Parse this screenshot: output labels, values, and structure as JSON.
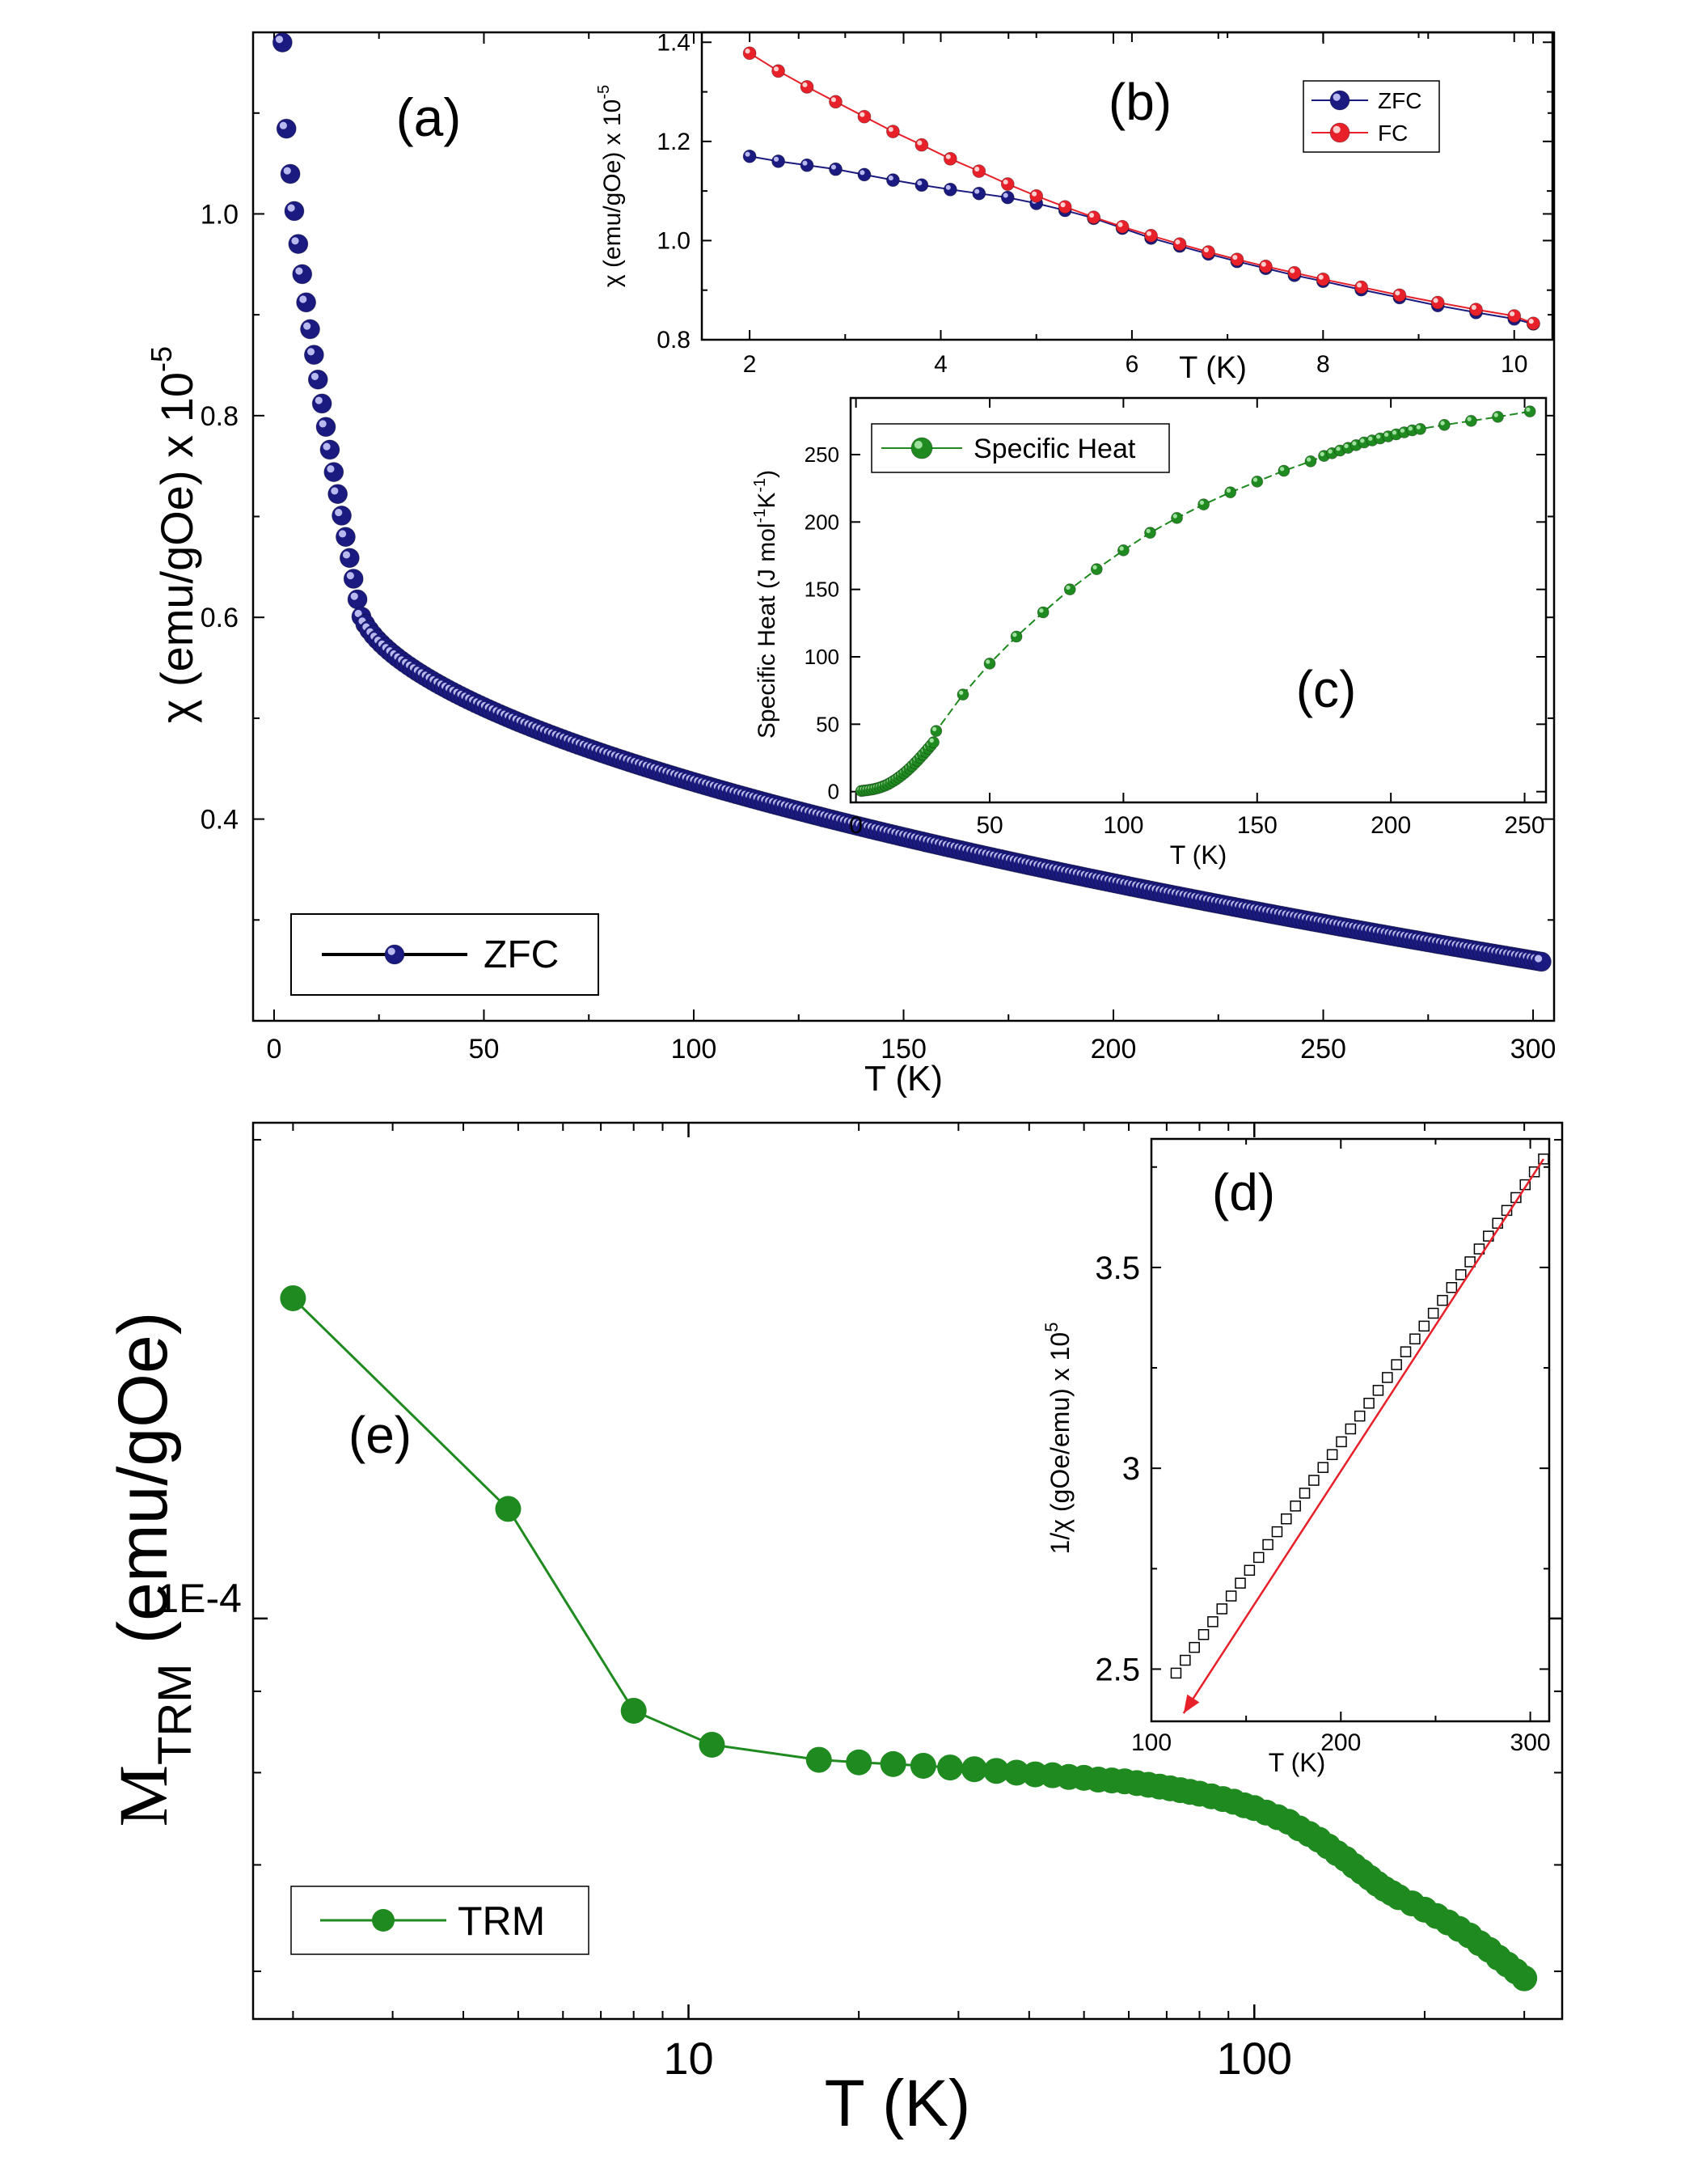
{
  "chart_data": [
    {
      "id": "a",
      "type": "scatter",
      "panel_label": "(a)",
      "xlabel": "T (K)",
      "ylabel": "χ (emu/gOe) x 10",
      "ylabel_exp": "-5",
      "xlim": [
        -5,
        305
      ],
      "ylim": [
        0.2,
        1.18
      ],
      "x_ticks": [
        "0",
        "50",
        "100",
        "150",
        "200",
        "250",
        "300"
      ],
      "y_ticks": [
        "0.4",
        "0.6",
        "0.8",
        "1.0"
      ],
      "legend": [
        "ZFC"
      ],
      "colors": {
        "ZFC": "#1a1a80"
      },
      "series": [
        {
          "name": "ZFC",
          "curve": "zfc_susceptibility",
          "x_range": [
            2.0,
            302.0
          ],
          "points": 320,
          "y_at_2K": 1.17,
          "y_at_20K": 0.615,
          "y_at_300K": 0.26
        }
      ]
    },
    {
      "id": "b",
      "type": "line",
      "panel_label": "(b)",
      "xlabel": "T (K)",
      "ylabel": "χ (emu/gOe) x 10",
      "ylabel_exp": "-5",
      "xlim": [
        1.5,
        10.4
      ],
      "ylim": [
        0.8,
        1.42
      ],
      "x_ticks": [
        "2",
        "4",
        "6",
        "8",
        "10"
      ],
      "y_ticks": [
        "0.8",
        "1.0",
        "1.2",
        "1.4"
      ],
      "legend": [
        "ZFC",
        "FC"
      ],
      "colors": {
        "ZFC": "#1a1a80",
        "FC": "#e8202a"
      },
      "series": [
        {
          "name": "ZFC",
          "x": [
            2.0,
            2.3,
            2.6,
            2.9,
            3.2,
            3.5,
            3.8,
            4.1,
            4.4,
            4.7,
            5.0,
            5.3,
            5.6,
            5.9,
            6.2,
            6.5,
            6.8,
            7.1,
            7.4,
            7.7,
            8.0,
            8.4,
            8.8,
            9.2,
            9.6,
            10.0,
            10.2
          ],
          "y": [
            1.17,
            1.16,
            1.152,
            1.144,
            1.133,
            1.122,
            1.112,
            1.103,
            1.095,
            1.087,
            1.075,
            1.061,
            1.045,
            1.025,
            1.005,
            0.989,
            0.973,
            0.958,
            0.944,
            0.93,
            0.918,
            0.901,
            0.885,
            0.869,
            0.855,
            0.842,
            0.832
          ]
        },
        {
          "name": "FC",
          "x": [
            2.0,
            2.3,
            2.6,
            2.9,
            3.2,
            3.5,
            3.8,
            4.1,
            4.4,
            4.7,
            5.0,
            5.3,
            5.6,
            5.9,
            6.2,
            6.5,
            6.8,
            7.1,
            7.4,
            7.7,
            8.0,
            8.4,
            8.8,
            9.2,
            9.6,
            10.0,
            10.2
          ],
          "y": [
            1.378,
            1.342,
            1.31,
            1.28,
            1.25,
            1.22,
            1.193,
            1.165,
            1.14,
            1.114,
            1.09,
            1.068,
            1.047,
            1.028,
            1.01,
            0.993,
            0.977,
            0.962,
            0.948,
            0.935,
            0.922,
            0.906,
            0.89,
            0.875,
            0.861,
            0.848,
            0.833
          ]
        }
      ]
    },
    {
      "id": "c",
      "type": "line",
      "panel_label": "(c)",
      "xlabel": "T (K)",
      "ylabel": "Specific Heat (J mol",
      "ylabel_exp1": "-1",
      "ylabel_mid": "K",
      "ylabel_exp2": "-1",
      "ylabel_end": ")",
      "xlim": [
        -2,
        258
      ],
      "ylim": [
        -8,
        292
      ],
      "x_ticks": [
        "0",
        "50",
        "100",
        "150",
        "200",
        "250"
      ],
      "y_ticks": [
        "0",
        "50",
        "100",
        "150",
        "200",
        "250"
      ],
      "legend": [
        "Specific Heat"
      ],
      "colors": {
        "Specific Heat": "#1f8a1f"
      },
      "series": [
        {
          "name": "Specific Heat",
          "x": [
            2,
            3,
            4,
            5,
            6,
            7,
            8,
            9,
            10,
            11,
            12,
            13,
            14,
            15,
            16,
            17,
            18,
            19,
            20,
            21,
            22,
            23,
            24,
            25,
            26,
            27,
            28,
            29,
            30,
            40,
            50,
            60,
            70,
            80,
            90,
            100,
            110,
            120,
            130,
            140,
            150,
            160,
            170,
            175,
            178,
            181,
            184,
            187,
            190,
            193,
            196,
            199,
            202,
            205,
            208,
            211,
            220,
            230,
            240,
            252
          ],
          "y": [
            0.5,
            0.8,
            1.0,
            1.3,
            1.6,
            2.0,
            2.5,
            3.1,
            3.8,
            4.6,
            5.5,
            6.6,
            7.8,
            9.1,
            10.5,
            12.0,
            13.6,
            15.3,
            17.1,
            19.0,
            21.0,
            23.0,
            25.2,
            27.4,
            29.6,
            31.9,
            34.2,
            36.6,
            45.0,
            72.0,
            95.0,
            115.0,
            133.0,
            150.0,
            165.0,
            179.0,
            192.0,
            203.0,
            213.0,
            222.0,
            230.0,
            238.0,
            245.0,
            249.0,
            251.0,
            253.0,
            255.0,
            257.0,
            259.0,
            260.5,
            262.0,
            263.5,
            265.0,
            266.5,
            268.0,
            269.0,
            272.0,
            275.0,
            278.0,
            282.0
          ]
        }
      ]
    },
    {
      "id": "d",
      "type": "scatter",
      "panel_label": "(d)",
      "xlabel": "T (K)",
      "ylabel": "1/χ (gOe/emu) x 10",
      "ylabel_exp": "5",
      "xlim": [
        100,
        310
      ],
      "ylim": [
        2.37,
        3.82
      ],
      "x_ticks": [
        "100",
        "200",
        "300"
      ],
      "y_ticks": [
        "2.5",
        "3",
        "3.5"
      ],
      "legend": [],
      "colors": {
        "data": "#000000",
        "fit": "#e8202a"
      },
      "series": [
        {
          "name": "1/χ",
          "curve": "linear",
          "x_range": [
            113.0,
            307.0
          ],
          "points": 41,
          "y_start": 2.49,
          "y_end": 3.77
        },
        {
          "name": "linear fit",
          "x": [
            307.0,
            117.0
          ],
          "y": [
            3.77,
            2.39
          ]
        }
      ]
    },
    {
      "id": "e",
      "type": "line",
      "panel_label": "(e)",
      "xlabel": "T (K)",
      "ylabel": "M",
      "ylabel_sub": "TRM",
      "ylabel_rest": " (emu/gOe)",
      "xscale": "log",
      "yscale": "log",
      "xlim": [
        1.7,
        350
      ],
      "ylim": [
        5.6e-05,
        0.000205
      ],
      "x_ticks": [
        "10",
        "100"
      ],
      "y_ticks": [
        "1E-4"
      ],
      "legend": [
        "TRM"
      ],
      "colors": {
        "TRM": "#1f8a1f"
      },
      "series": [
        {
          "name": "TRM",
          "x": [
            2,
            4.8,
            8,
            11,
            17,
            20,
            23,
            26,
            29,
            32,
            35,
            38,
            41,
            44,
            47,
            50,
            53,
            56,
            59,
            62,
            65,
            68,
            71,
            74,
            77,
            80,
            84,
            88,
            92,
            96,
            100,
            105,
            110,
            115,
            120,
            125,
            130,
            135,
            140,
            145,
            150,
            155,
            160,
            165,
            170,
            175,
            180,
            190,
            200,
            210,
            220,
            230,
            240,
            250,
            260,
            270,
            280,
            290,
            300
          ],
          "y": [
            0.000159,
            0.0001172,
            8.75e-05,
            8.33e-05,
            8.15e-05,
            8.12e-05,
            8.1e-05,
            8.08e-05,
            8.06e-05,
            8.04e-05,
            8.02e-05,
            8e-05,
            7.98e-05,
            7.97e-05,
            7.95e-05,
            7.94e-05,
            7.92e-05,
            7.91e-05,
            7.9e-05,
            7.88e-05,
            7.86e-05,
            7.84e-05,
            7.82e-05,
            7.8e-05,
            7.78e-05,
            7.76e-05,
            7.73e-05,
            7.7e-05,
            7.67e-05,
            7.63e-05,
            7.6e-05,
            7.55e-05,
            7.5e-05,
            7.45e-05,
            7.38e-05,
            7.32e-05,
            7.26e-05,
            7.19e-05,
            7.12e-05,
            7.06e-05,
            6.99e-05,
            6.93e-05,
            6.87e-05,
            6.81e-05,
            6.76e-05,
            6.72e-05,
            6.68e-05,
            6.62e-05,
            6.56e-05,
            6.5e-05,
            6.44e-05,
            6.38e-05,
            6.32e-05,
            6.25e-05,
            6.19e-05,
            6.12e-05,
            6.06e-05,
            6e-05,
            5.94e-05
          ]
        }
      ]
    }
  ]
}
